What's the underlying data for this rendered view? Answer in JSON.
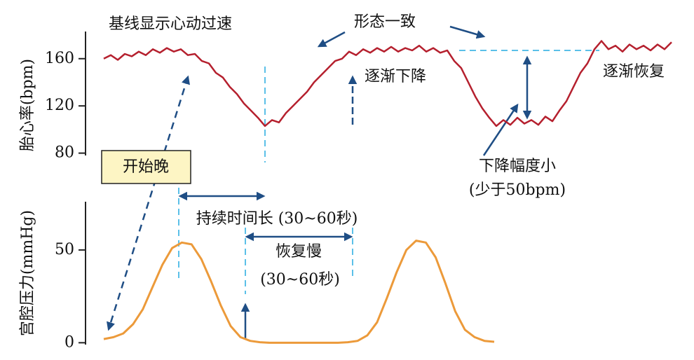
{
  "chart_data": [
    {
      "type": "line",
      "y_label": "胎心率(bpm)",
      "color": "#b5202e",
      "ylim": [
        78,
        183
      ],
      "yticks": [
        80,
        120,
        160
      ],
      "annotations": [
        "基线显示心动过速",
        "形态一致",
        "逐渐下降",
        "逐渐恢复",
        "开始晚",
        "下降幅度小",
        "(少于50bpm)"
      ],
      "values": [
        160,
        163,
        159,
        164,
        162,
        166,
        163,
        168,
        165,
        169,
        166,
        168,
        163,
        164,
        158,
        156,
        148,
        144,
        136,
        130,
        122,
        116,
        110,
        103,
        108,
        106,
        114,
        120,
        126,
        132,
        140,
        146,
        152,
        158,
        160,
        166,
        163,
        168,
        165,
        169,
        166,
        170,
        166,
        169,
        167,
        171,
        166,
        169,
        165,
        167,
        158,
        152,
        140,
        128,
        118,
        110,
        103,
        108,
        104,
        110,
        105,
        108,
        104,
        111,
        107,
        116,
        124,
        136,
        148,
        156,
        168,
        175,
        168,
        171,
        166,
        172,
        168,
        171,
        167,
        172,
        168,
        174
      ]
    },
    {
      "type": "line",
      "y_label": "宫腔压力(mmHg)",
      "color": "#ec9a3a",
      "ylim": [
        -1,
        76
      ],
      "yticks": [
        0,
        50
      ],
      "annotations": [
        "持续时间长 (30~60秒)",
        "恢复慢",
        "(30~60秒)"
      ],
      "values": [
        2,
        3,
        5,
        10,
        18,
        30,
        42,
        51,
        54,
        53,
        45,
        33,
        20,
        9,
        3,
        1,
        0.3,
        0,
        0,
        0,
        0,
        0,
        0,
        0,
        0,
        0.3,
        1,
        4,
        11,
        24,
        38,
        50,
        55,
        54,
        46,
        32,
        17,
        7,
        3,
        1,
        0.5
      ]
    }
  ]
}
